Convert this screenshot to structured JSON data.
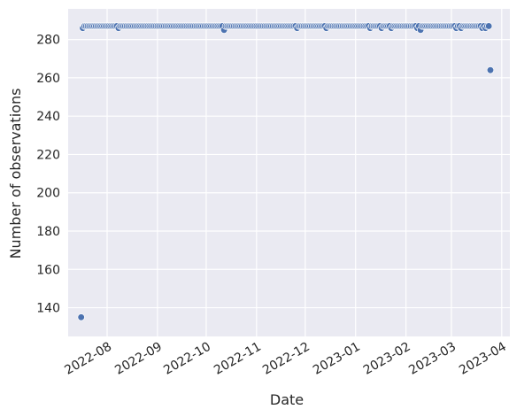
{
  "chart_data": {
    "type": "scatter",
    "xlabel": "Date",
    "ylabel": "Number of observations",
    "ylim": [
      125,
      296
    ],
    "xlim": [
      "2022-07-08",
      "2023-04-06"
    ],
    "grid": true,
    "background_color": "#eaeaf2",
    "grid_color": "#ffffff",
    "point_color": "#4c72b0",
    "x_ticks": [
      "2022-08",
      "2022-09",
      "2022-10",
      "2022-11",
      "2022-12",
      "2023-01",
      "2023-02",
      "2023-03",
      "2023-04"
    ],
    "y_ticks": [
      140,
      160,
      180,
      200,
      220,
      240,
      260,
      280
    ],
    "points": {
      "x_start": "2022-07-16",
      "x_end": "2023-03-25",
      "default_y": 287,
      "overrides": [
        {
          "x": "2022-07-16",
          "y": 135
        },
        {
          "x": "2022-07-17",
          "y": 286
        },
        {
          "x": "2022-08-08",
          "y": 286
        },
        {
          "x": "2022-10-12",
          "y": 285
        },
        {
          "x": "2022-11-26",
          "y": 286
        },
        {
          "x": "2022-12-14",
          "y": 286
        },
        {
          "x": "2023-01-10",
          "y": 286
        },
        {
          "x": "2023-01-17",
          "y": 286
        },
        {
          "x": "2023-01-23",
          "y": 286
        },
        {
          "x": "2023-02-08",
          "y": 286
        },
        {
          "x": "2023-02-10",
          "y": 285
        },
        {
          "x": "2023-03-04",
          "y": 286
        },
        {
          "x": "2023-03-07",
          "y": 286
        },
        {
          "x": "2023-03-20",
          "y": 286
        },
        {
          "x": "2023-03-22",
          "y": 286
        },
        {
          "x": "2023-03-25",
          "y": 264
        }
      ]
    }
  }
}
